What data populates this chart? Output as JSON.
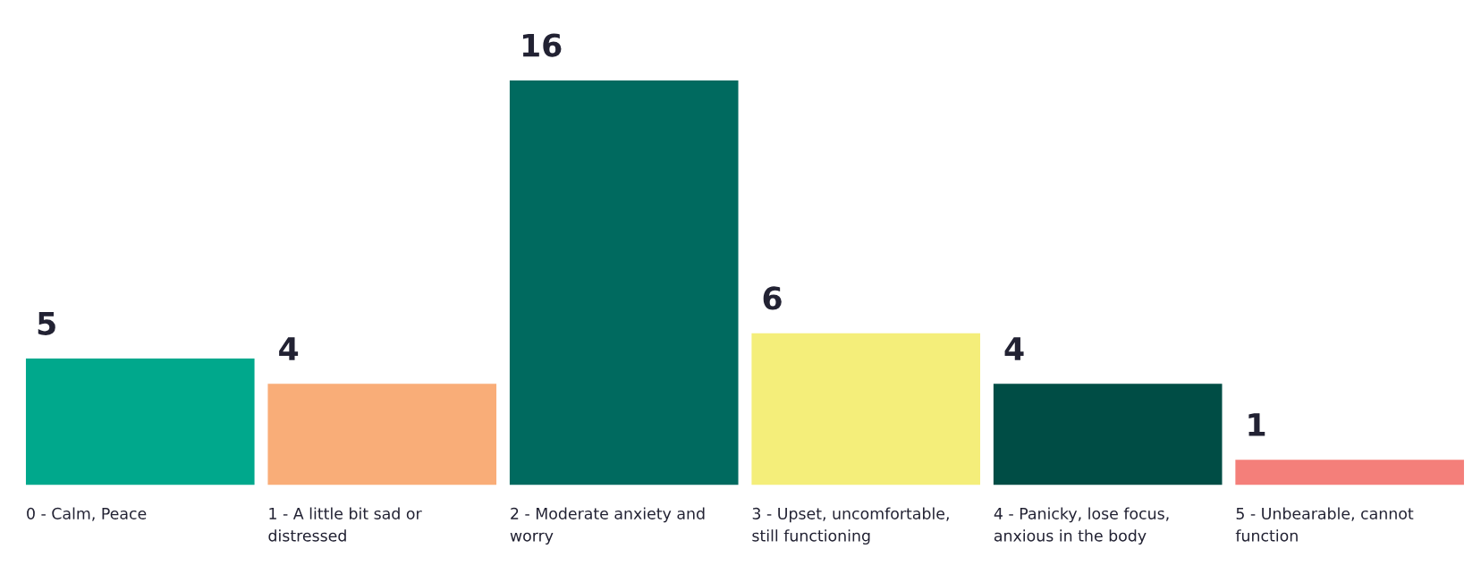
{
  "chart_data": {
    "type": "bar",
    "categories": [
      "0 - Calm, Peace",
      "1 - A little bit sad or\ndistressed",
      "2 - Moderate anxiety and\nworry",
      "3 - Upset, uncomfortable,\nstill functioning",
      "4 - Panicky, lose focus,\nanxious in the body",
      "5 - Unbearable, cannot\nfunction"
    ],
    "values": [
      5,
      4,
      16,
      6,
      4,
      1
    ],
    "colors": [
      "#00a88c",
      "#f9ad78",
      "#006a5f",
      "#f4ee7a",
      "#004d45",
      "#f47f7a"
    ],
    "data_labels": true
  }
}
